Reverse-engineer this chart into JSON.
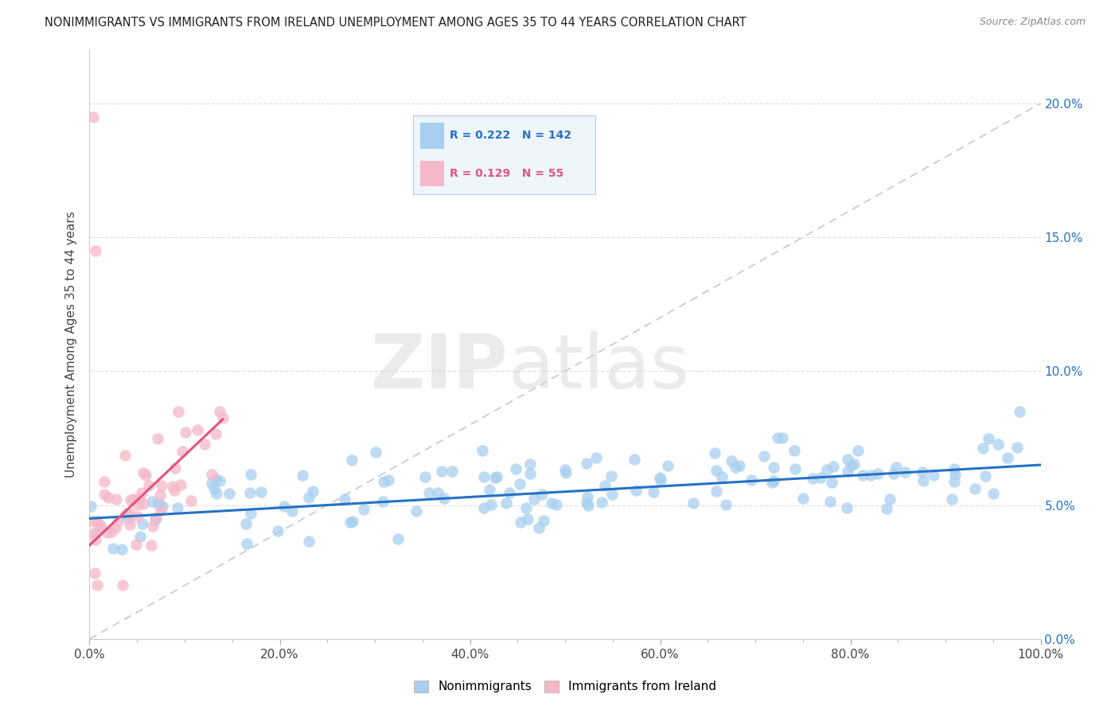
{
  "title": "NONIMMIGRANTS VS IMMIGRANTS FROM IRELAND UNEMPLOYMENT AMONG AGES 35 TO 44 YEARS CORRELATION CHART",
  "source": "Source: ZipAtlas.com",
  "ylabel": "Unemployment Among Ages 35 to 44 years",
  "R_nonimmigrant": 0.222,
  "N_nonimmigrant": 142,
  "R_immigrant": 0.129,
  "N_immigrant": 55,
  "watermark_zip": "ZIP",
  "watermark_atlas": "atlas",
  "nonimmigrant_color": "#a8cff0",
  "immigrant_color": "#f5b8c8",
  "nonimmigrant_line_color": "#2472c4",
  "immigrant_line_color": "#e05580",
  "reference_line_color": "#c8c8c8",
  "tick_color_blue": "#2472c4",
  "background_color": "#ffffff",
  "grid_color": "#e0e0e0",
  "xlim": [
    0,
    100
  ],
  "ylim": [
    0,
    22
  ]
}
